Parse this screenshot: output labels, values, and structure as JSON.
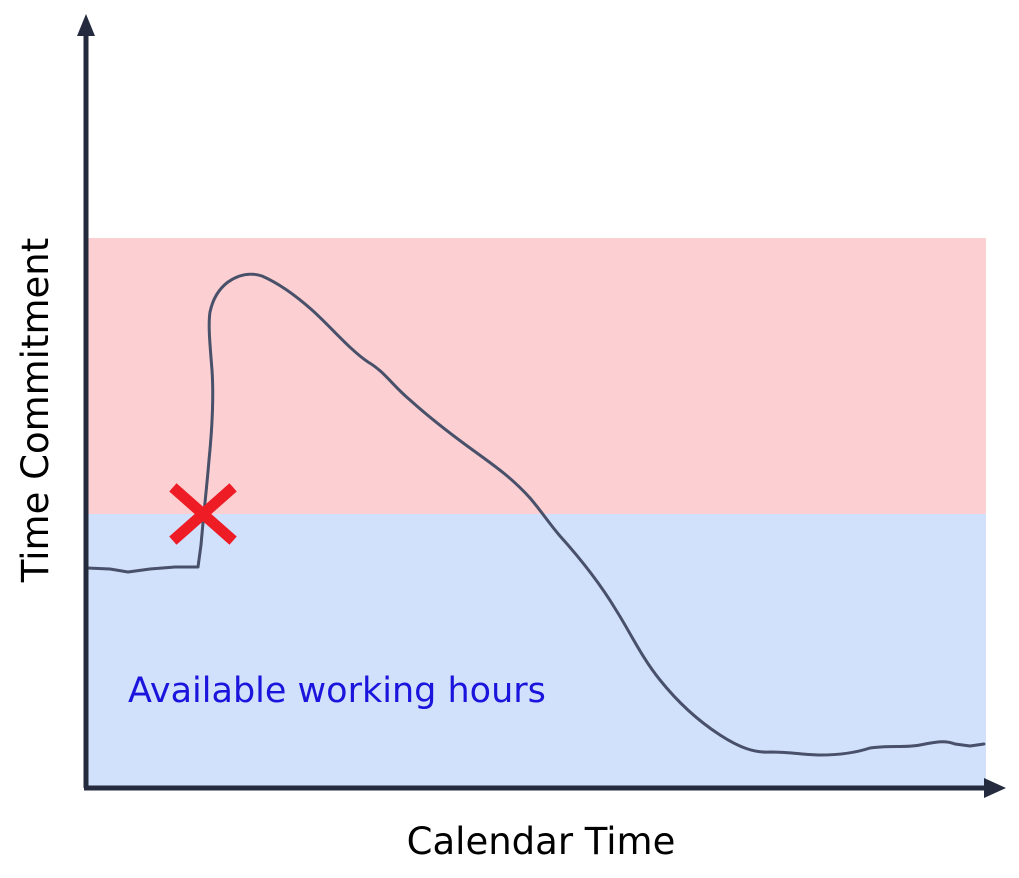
{
  "axes": {
    "x_label": "Calendar Time",
    "y_label": "Time Commitment"
  },
  "zones": {
    "available_label": "Available working hours",
    "colors": {
      "over_capacity": "#fcd0d2",
      "available": "#d1e0fb",
      "available_label": "#1a14dd"
    }
  },
  "curve": {
    "color": "#48506a",
    "marker_color": "#ee1c25",
    "marker_icon": "x-mark"
  },
  "axis_color": "#252b3f"
}
